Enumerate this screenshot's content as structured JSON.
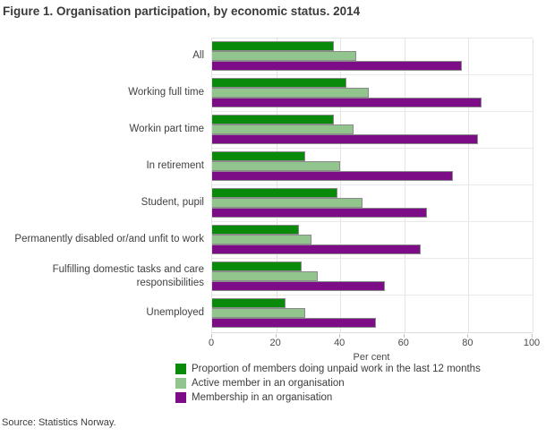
{
  "title": "Figure 1. Organisation participation, by economic status. 2014",
  "source": "Source: Statistics Norway.",
  "colors": {
    "unpaid_work_green": "#0a8a0a",
    "active_member_light_green": "#92c48e",
    "membership_purple": "#7d0d87",
    "bar_border": "#8a8a8a",
    "gridline": "#e4e4e4"
  },
  "chart_data": {
    "type": "bar",
    "orientation": "horizontal",
    "title": "Figure 1. Organisation participation, by economic status. 2014",
    "xlabel": "Per cent",
    "ylabel": "",
    "xlim": [
      0,
      100
    ],
    "x_ticks": [
      0,
      20,
      40,
      60,
      80,
      100
    ],
    "grid": true,
    "legend_position": "bottom",
    "categories": [
      "All",
      "Working full time",
      "Workin part time",
      "In retirement",
      "Student, pupil",
      "Permanently disabled or/and unfit to work",
      "Fulfilling domestic tasks and care responsibilities",
      "Unemployed"
    ],
    "series": [
      {
        "name": "Proportion of members doing unpaid work in the last 12 months",
        "color": "#0a8a0a",
        "values": [
          38,
          42,
          38,
          29,
          39,
          27,
          28,
          23
        ]
      },
      {
        "name": "Active member in an organisation",
        "color": "#92c48e",
        "values": [
          45,
          49,
          44,
          40,
          47,
          31,
          33,
          29
        ]
      },
      {
        "name": "Membership in an organisation",
        "color": "#7d0d87",
        "values": [
          78,
          84,
          83,
          75,
          67,
          65,
          54,
          51
        ]
      }
    ]
  }
}
